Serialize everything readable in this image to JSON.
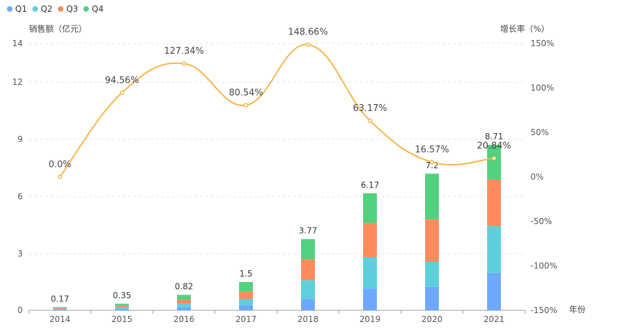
{
  "chart_data": {
    "type": "bar",
    "stacked": true,
    "categories": [
      "2014",
      "2015",
      "2016",
      "2017",
      "2018",
      "2019",
      "2020",
      "2021"
    ],
    "series": [
      {
        "name": "Q1",
        "color": "#6fa8ff",
        "values": [
          0.04,
          0.08,
          0.15,
          0.28,
          0.6,
          1.15,
          1.25,
          1.98
        ]
      },
      {
        "name": "Q2",
        "color": "#5dd0dc",
        "values": [
          0.04,
          0.08,
          0.2,
          0.32,
          1.0,
          1.67,
          1.33,
          2.47
        ]
      },
      {
        "name": "Q3",
        "color": "#ff8a5b",
        "values": [
          0.05,
          0.09,
          0.22,
          0.42,
          1.1,
          1.8,
          2.22,
          2.42
        ]
      },
      {
        "name": "Q4",
        "color": "#52d17f",
        "values": [
          0.04,
          0.1,
          0.25,
          0.48,
          1.07,
          1.55,
          2.4,
          1.84
        ]
      }
    ],
    "totals": [
      "0.17",
      "0.35",
      "0.82",
      "1.5",
      "3.77",
      "6.17",
      "7.2",
      "8.71"
    ],
    "growth": {
      "name": "增长率",
      "color": "#f5b54a",
      "values": [
        0.0,
        94.56,
        127.34,
        80.54,
        148.66,
        63.17,
        16.57,
        20.84
      ],
      "labels": [
        "0.0%",
        "94.56%",
        "127.34%",
        "80.54%",
        "148.66%",
        "63.17%",
        "16.57%",
        "20.84%"
      ]
    },
    "ylabel_left": "销售额（亿元）",
    "ylabel_right": "增长率（%）",
    "xlabel": "年份",
    "yticks_left": [
      0,
      3,
      6,
      9,
      12,
      14
    ],
    "ylim_left": [
      0,
      14
    ],
    "yticks_right": [
      "-150%",
      "-100%",
      "-50%",
      "0%",
      "50%",
      "100%",
      "150%"
    ],
    "yticks_right_values": [
      -150,
      -100,
      -50,
      0,
      50,
      100,
      150
    ],
    "ylim_right": [
      -150,
      150
    ],
    "grid": true,
    "legend_position": "top-left"
  }
}
